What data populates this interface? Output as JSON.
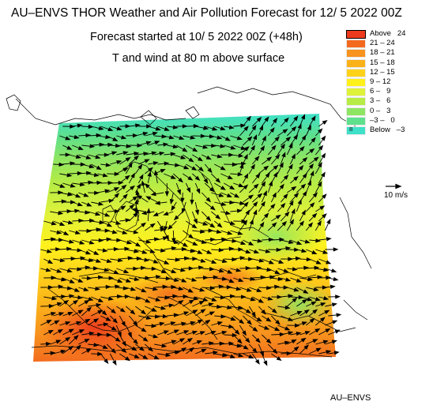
{
  "header": {
    "title": "AU–ENVS THOR Weather and Air Pollution Forecast for 12/ 5 2022  00Z",
    "subtitle": "Forecast started at 10/ 5 2022  00Z (+48h)",
    "field_label": "T and wind at 80 m above surface"
  },
  "legend": {
    "items": [
      {
        "label": "Above   24",
        "color": "#ee3a1c"
      },
      {
        "label": "21 – 24",
        "color": "#f36a1e"
      },
      {
        "label": "18 – 21",
        "color": "#f7931e"
      },
      {
        "label": "15 – 18",
        "color": "#fbb219"
      },
      {
        "label": "12 – 15",
        "color": "#ffd21a"
      },
      {
        "label": "9 – 12",
        "color": "#fff11c"
      },
      {
        "label": "6 –   9",
        "color": "#dff23a"
      },
      {
        "label": "3 –   6",
        "color": "#b6ec45"
      },
      {
        "label": "0 –   3",
        "color": "#8ee562"
      },
      {
        "label": "–3 –   0",
        "color": "#5ee08c"
      },
      {
        "label": "Below   –3",
        "color": "#3ee1c8"
      }
    ],
    "below_marker": "B"
  },
  "wind_scale": {
    "label": "10 m/s"
  },
  "footer": {
    "credit": "AU–ENVS"
  },
  "colors": {
    "background": "#ffffff",
    "coastline": "#000000",
    "arrow": "#000000"
  }
}
